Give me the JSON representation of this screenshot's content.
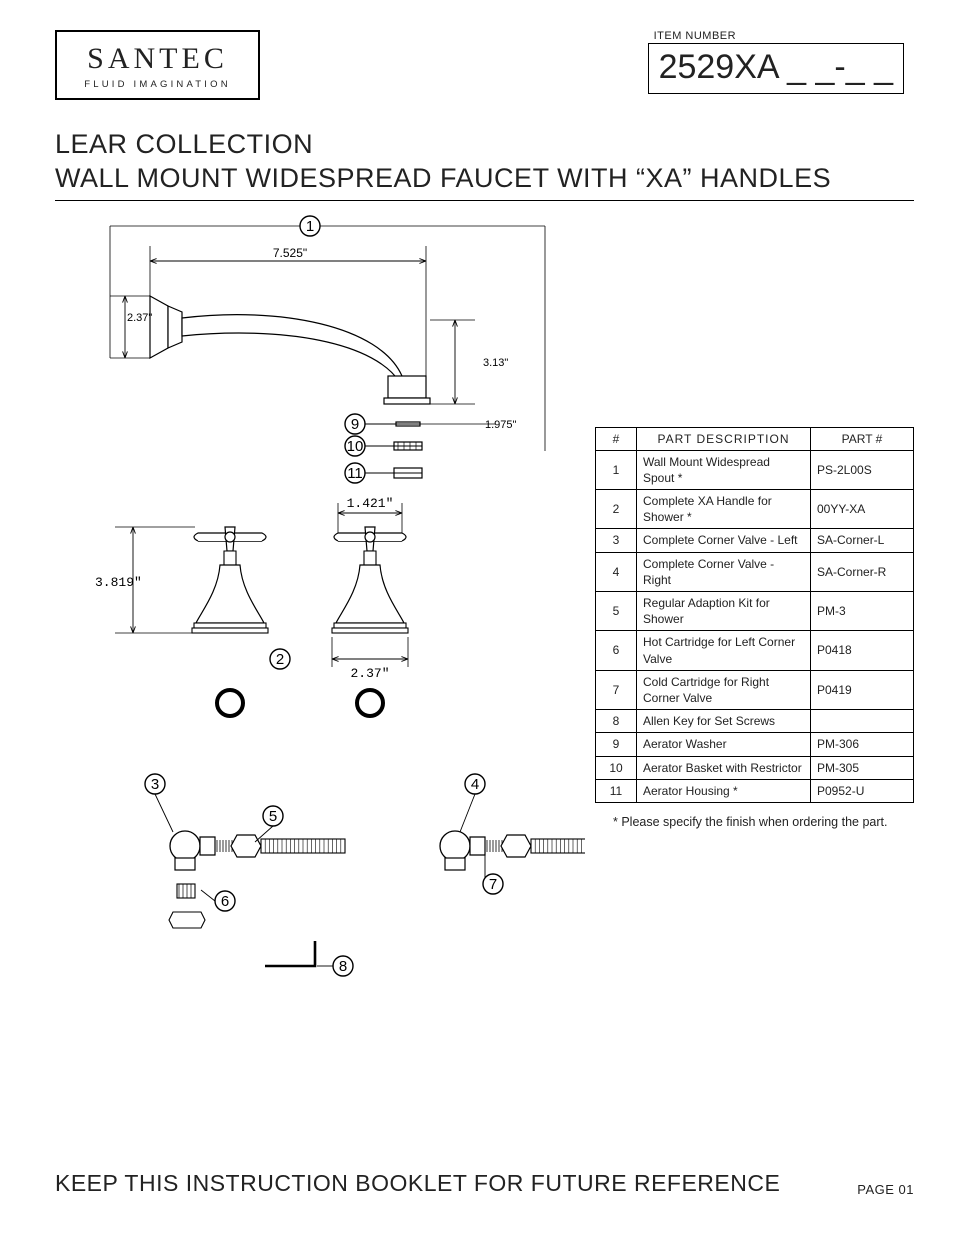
{
  "brand": {
    "name": "SANTEC",
    "tagline": "FLUID IMAGINATION"
  },
  "item": {
    "label": "ITEM NUMBER",
    "value": "2529XA _ _-_ _"
  },
  "title": {
    "line1": "LEAR COLLECTION",
    "line2": "WALL MOUNT WIDESPREAD FAUCET WITH “XA” HANDLES"
  },
  "dims": {
    "spout_len": "7.525\"",
    "escutcheon_h": "2.37\"",
    "spout_drop": "3.13\"",
    "aerator_w": "1.975\"",
    "handle_h": "3.819\"",
    "handle_cross": "1.421\"",
    "handle_base": "2.37\""
  },
  "callouts": [
    "1",
    "2",
    "3",
    "4",
    "5",
    "6",
    "7",
    "8",
    "9",
    "10",
    "11"
  ],
  "parts_table": {
    "headers": {
      "num": "#",
      "desc": "PART  DESCRIPTION",
      "pn": "PART #"
    },
    "rows": [
      {
        "num": "1",
        "desc": "Wall Mount Widespread Spout *",
        "pn": "PS-2L00S"
      },
      {
        "num": "2",
        "desc": "Complete XA Handle for Shower *",
        "pn": "00YY-XA"
      },
      {
        "num": "3",
        "desc": "Complete Corner Valve - Left",
        "pn": "SA-Corner-L"
      },
      {
        "num": "4",
        "desc": "Complete Corner Valve - Right",
        "pn": "SA-Corner-R"
      },
      {
        "num": "5",
        "desc": "Regular Adaption Kit for Shower",
        "pn": "PM-3"
      },
      {
        "num": "6",
        "desc": "Hot Cartridge for Left Corner Valve",
        "pn": "P0418"
      },
      {
        "num": "7",
        "desc": "Cold Cartridge for Right Corner Valve",
        "pn": "P0419"
      },
      {
        "num": "8",
        "desc": "Allen Key for Set Screws",
        "pn": ""
      },
      {
        "num": "9",
        "desc": "Aerator Washer",
        "pn": "PM-306"
      },
      {
        "num": "10",
        "desc": "Aerator Basket with Restrictor",
        "pn": "PM-305"
      },
      {
        "num": "11",
        "desc": "Aerator Housing *",
        "pn": "P0952-U"
      }
    ],
    "note": "* Please specify the finish when ordering the part."
  },
  "footer": {
    "main": "KEEP THIS INSTRUCTION BOOKLET FOR FUTURE REFERENCE",
    "page": "PAGE 01"
  },
  "style": {
    "stroke": "#000000",
    "stroke_w": 1.2,
    "stroke_thin": 0.9,
    "dim_font": 12,
    "callout_font": 15,
    "callout_r": 10
  }
}
